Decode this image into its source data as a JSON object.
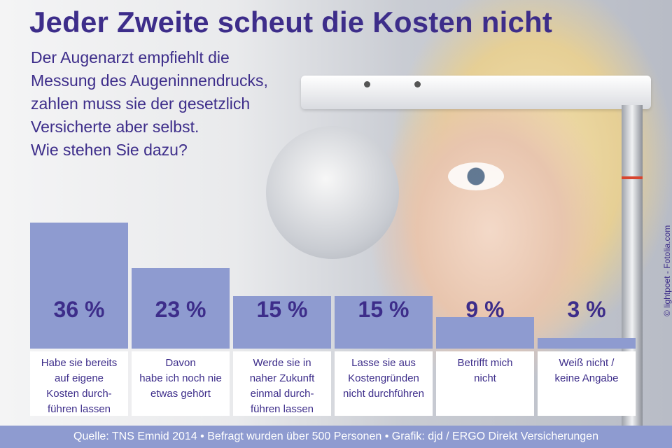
{
  "title": "Jeder Zweite scheut die Kosten nicht",
  "subtitle_lines": [
    "Der Augenarzt empfiehlt die",
    "Messung des Augeninnendrucks,",
    "zahlen muss sie der gesetzlich",
    "Versicherte aber selbst.",
    "Wie stehen Sie dazu?"
  ],
  "chart_data": {
    "type": "bar",
    "categories": [
      "Habe sie bereits auf eigene Kosten durchführen lassen",
      "Davon habe ich noch nie etwas gehört",
      "Werde sie in naher Zukunft einmal durchführen lassen",
      "Lasse sie aus Kostengründen nicht durchführen",
      "Betrifft mich nicht",
      "Weiß nicht / keine Angabe"
    ],
    "category_lines": [
      [
        "Habe sie bereits",
        "auf eigene",
        "Kosten durch-",
        "führen lassen"
      ],
      [
        "Davon",
        "habe ich noch nie",
        "etwas gehört"
      ],
      [
        "Werde sie in",
        "naher Zukunft",
        "einmal durch-",
        "führen lassen"
      ],
      [
        "Lasse sie aus",
        "Kostengründen",
        "nicht durchführen"
      ],
      [
        "Betrifft mich",
        "nicht"
      ],
      [
        "Weiß nicht /",
        "keine Angabe"
      ]
    ],
    "values": [
      36,
      23,
      15,
      15,
      9,
      3
    ],
    "value_labels": [
      "36 %",
      "23 %",
      "15 %",
      "15 %",
      "9 %",
      "3 %"
    ],
    "unit": "%",
    "ylim": [
      0,
      36
    ],
    "colors": {
      "bar": "#8e9bd0",
      "text": "#3d2d8a"
    }
  },
  "footer": "Quelle: TNS Emnid 2014 • Befragt wurden über 500 Personen • Grafik: djd / ERGO Direkt Versicherungen",
  "credit": "© lightpoet - Fotolia.com"
}
